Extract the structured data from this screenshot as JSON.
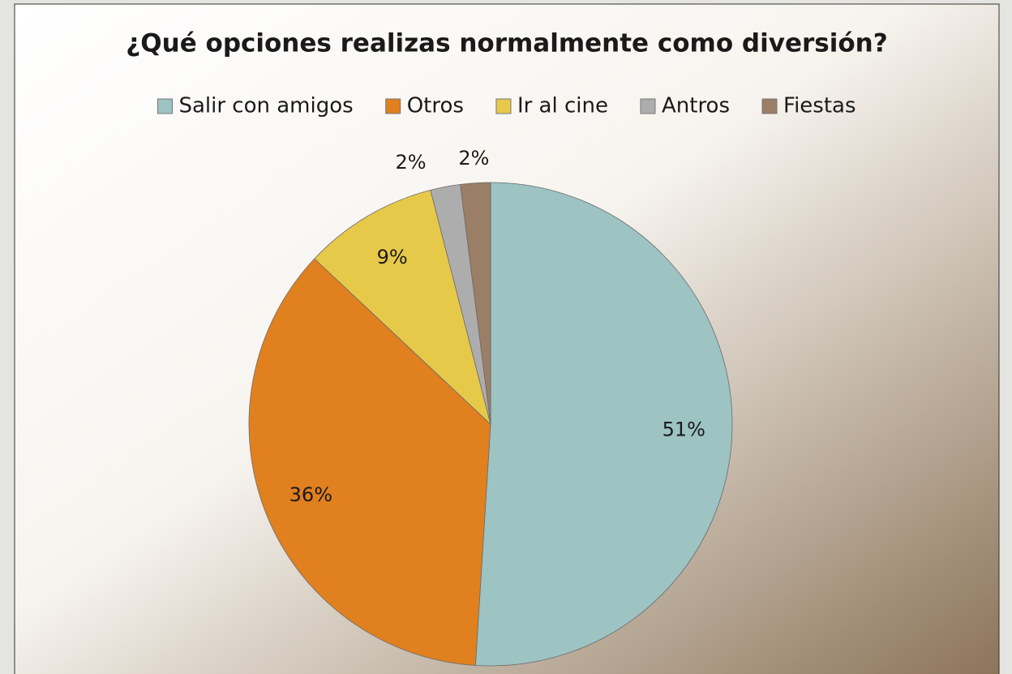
{
  "chart_data": {
    "type": "pie",
    "title": "¿Qué opciones realizas normalmente como diversión?",
    "categories": [
      "Salir con amigos",
      "Otros",
      "Ir al cine",
      "Antros",
      "Fiestas"
    ],
    "values": [
      51,
      36,
      9,
      2,
      2
    ],
    "value_labels": [
      "51%",
      "36%",
      "9%",
      "2%",
      "2%"
    ],
    "colors": [
      "#9dc3c3",
      "#e0801f",
      "#e7c94a",
      "#adadad",
      "#9a7e65"
    ],
    "legend": "top"
  }
}
